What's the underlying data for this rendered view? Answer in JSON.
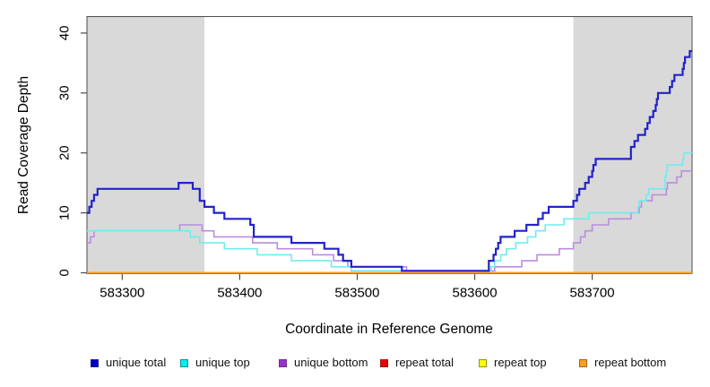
{
  "chart_data": {
    "type": "line",
    "style": "step",
    "title": "",
    "xlabel": "Coordinate in Reference Genome",
    "ylabel": "Read Coverage Depth",
    "xlim": [
      583270,
      583785
    ],
    "ylim": [
      0,
      42.5
    ],
    "x_ticks": [
      583300,
      583400,
      583500,
      583600,
      583700
    ],
    "y_ticks": [
      0,
      10,
      20,
      30,
      40
    ],
    "grid": false,
    "shade_color": "#d9d9d9",
    "shaded_regions": [
      {
        "start": 583270,
        "end": 583370
      },
      {
        "start": 583684,
        "end": 583785
      }
    ],
    "series": [
      {
        "name": "repeat total",
        "color": "#e01010",
        "width": 1.4,
        "raise_zero": false,
        "points": [
          [
            583270,
            0
          ],
          [
            583785,
            0
          ]
        ]
      },
      {
        "name": "repeat top",
        "color": "#ffff00",
        "width": 1.4,
        "raise_zero": false,
        "points": [
          [
            583270,
            0
          ],
          [
            583785,
            0
          ]
        ]
      },
      {
        "name": "unique bottom",
        "color": "#bb8ce0",
        "width": 1.6,
        "raise_zero": true,
        "points": [
          [
            583270,
            5
          ],
          [
            583273,
            6
          ],
          [
            583276,
            7
          ],
          [
            583349,
            8
          ],
          [
            583368,
            7
          ],
          [
            583378,
            6
          ],
          [
            583411,
            5
          ],
          [
            583432,
            4
          ],
          [
            583462,
            3
          ],
          [
            583480,
            2
          ],
          [
            583492,
            1
          ],
          [
            583542,
            0
          ],
          [
            583617,
            1
          ],
          [
            583640,
            2
          ],
          [
            583653,
            3
          ],
          [
            583672,
            4
          ],
          [
            583684,
            5
          ],
          [
            583690,
            6
          ],
          [
            583694,
            7
          ],
          [
            583700,
            8
          ],
          [
            583714,
            9
          ],
          [
            583733,
            10
          ],
          [
            583740,
            11
          ],
          [
            583742,
            12
          ],
          [
            583751,
            13
          ],
          [
            583763,
            14
          ],
          [
            583764,
            15
          ],
          [
            583772,
            16
          ],
          [
            583776,
            17
          ],
          [
            583785,
            17
          ]
        ]
      },
      {
        "name": "unique top",
        "color": "#70ecf0",
        "width": 1.6,
        "raise_zero": true,
        "points": [
          [
            583270,
            7
          ],
          [
            583358,
            6
          ],
          [
            583366,
            5
          ],
          [
            583387,
            4
          ],
          [
            583415,
            3
          ],
          [
            583444,
            2
          ],
          [
            583478,
            1
          ],
          [
            583495,
            0
          ],
          [
            583614,
            1
          ],
          [
            583617,
            2
          ],
          [
            583622,
            3
          ],
          [
            583627,
            4
          ],
          [
            583635,
            5
          ],
          [
            583645,
            6
          ],
          [
            583652,
            7
          ],
          [
            583660,
            8
          ],
          [
            583676,
            9
          ],
          [
            583697,
            10
          ],
          [
            583739,
            11
          ],
          [
            583740,
            12
          ],
          [
            583746,
            13
          ],
          [
            583748,
            14
          ],
          [
            583762,
            16
          ],
          [
            583763,
            17
          ],
          [
            583764,
            18
          ],
          [
            583777,
            19
          ],
          [
            583778,
            20
          ],
          [
            583785,
            20
          ]
        ]
      },
      {
        "name": "unique total",
        "color": "#2222cc",
        "width": 2.2,
        "raise_zero": true,
        "points": [
          [
            583270,
            10
          ],
          [
            583272,
            11
          ],
          [
            583274,
            12
          ],
          [
            583276,
            13
          ],
          [
            583279,
            14
          ],
          [
            583348,
            15
          ],
          [
            583360,
            14
          ],
          [
            583366,
            12
          ],
          [
            583370,
            11
          ],
          [
            583378,
            10
          ],
          [
            583387,
            9
          ],
          [
            583409,
            8
          ],
          [
            583412,
            6
          ],
          [
            583444,
            5
          ],
          [
            583472,
            4
          ],
          [
            583484,
            3
          ],
          [
            583488,
            2
          ],
          [
            583495,
            1
          ],
          [
            583538,
            0
          ],
          [
            583612,
            2
          ],
          [
            583616,
            3
          ],
          [
            583618,
            4
          ],
          [
            583620,
            5
          ],
          [
            583622,
            6
          ],
          [
            583634,
            7
          ],
          [
            583644,
            8
          ],
          [
            583654,
            9
          ],
          [
            583658,
            10
          ],
          [
            583663,
            11
          ],
          [
            583684,
            12
          ],
          [
            583687,
            13
          ],
          [
            583689,
            14
          ],
          [
            583694,
            15
          ],
          [
            583697,
            16
          ],
          [
            583700,
            17
          ],
          [
            583701,
            18
          ],
          [
            583703,
            19
          ],
          [
            583733,
            21
          ],
          [
            583736,
            22
          ],
          [
            583739,
            23
          ],
          [
            583745,
            24
          ],
          [
            583747,
            25
          ],
          [
            583749,
            26
          ],
          [
            583752,
            27
          ],
          [
            583754,
            28
          ],
          [
            583755,
            29
          ],
          [
            583756,
            30
          ],
          [
            583766,
            31
          ],
          [
            583768,
            32
          ],
          [
            583770,
            33
          ],
          [
            583777,
            34
          ],
          [
            583778,
            35
          ],
          [
            583779,
            36
          ],
          [
            583783,
            37
          ],
          [
            583785,
            37
          ]
        ]
      },
      {
        "name": "repeat bottom",
        "color": "#ff9d1c",
        "width": 2.0,
        "raise_zero": false,
        "points": [
          [
            583270,
            0
          ],
          [
            583785,
            0
          ]
        ]
      }
    ],
    "legend": [
      {
        "label": "unique total",
        "color": "#0000cc"
      },
      {
        "label": "unique top",
        "color": "#00eeee"
      },
      {
        "label": "unique bottom",
        "color": "#9932cc"
      },
      {
        "label": "repeat total",
        "color": "#ee0000"
      },
      {
        "label": "repeat top",
        "color": "#ffff00"
      },
      {
        "label": "repeat bottom",
        "color": "#ff9d1c"
      }
    ],
    "legend_position": "bottom",
    "axis_color": "#4d4d4d",
    "tick_label_color": "#000000"
  }
}
